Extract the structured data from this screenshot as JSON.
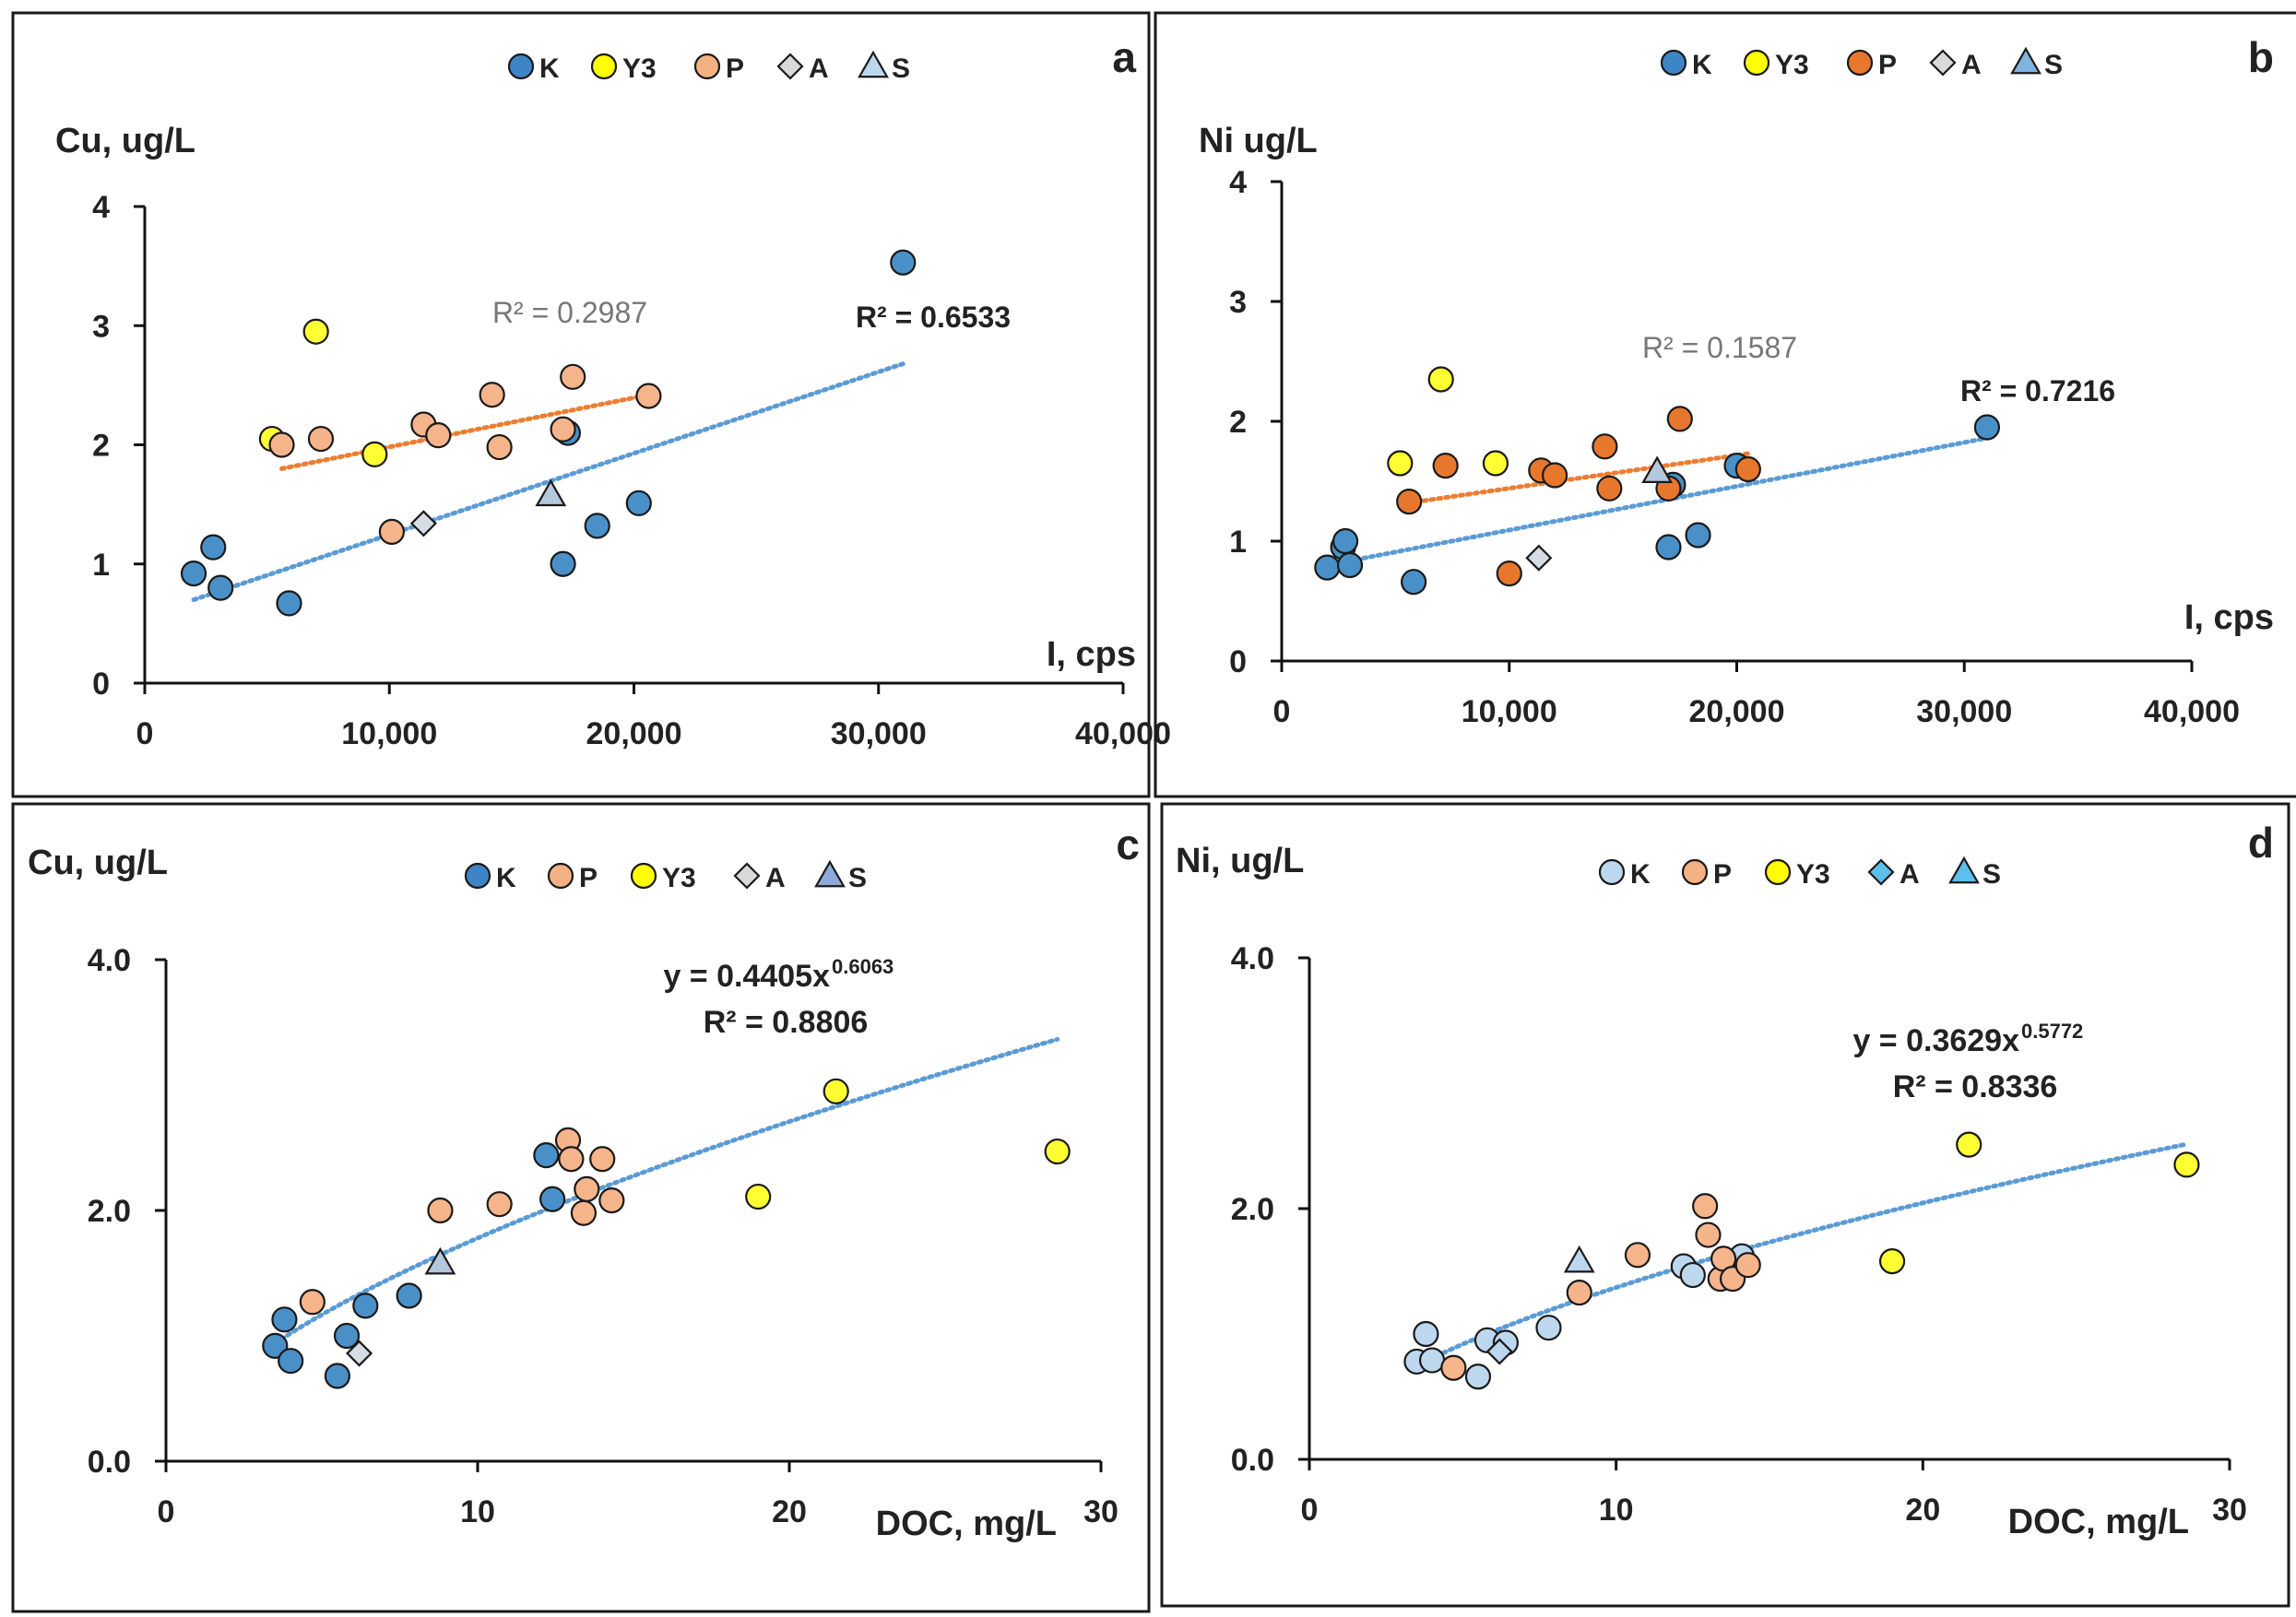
{
  "figure": {
    "description_markers": "K circle, Y3 circle, P circle, A diamond, S triangle"
  },
  "chart_data": [
    {
      "type": "scatter",
      "panel": "a",
      "ylabel": "Cu, ug/L",
      "xlabel": "I, cps",
      "xlim": [
        0,
        40000
      ],
      "ylim": [
        0,
        4
      ],
      "xticks": [
        0,
        10000,
        20000,
        30000,
        40000
      ],
      "xtick_labels": [
        "0",
        "10,000",
        "20,000",
        "30,000",
        "40,000"
      ],
      "yticks": [
        0,
        1,
        2,
        3,
        4
      ],
      "ytick_labels": [
        "0",
        "1",
        "2",
        "3",
        "4"
      ],
      "legend": [
        {
          "name": "K",
          "marker": "circle",
          "color": "#3d85c6"
        },
        {
          "name": "Y3",
          "marker": "circle",
          "color": "#ffff00"
        },
        {
          "name": "P",
          "marker": "circle",
          "color": "#f4b183"
        },
        {
          "name": "A",
          "marker": "diamond",
          "color": "#d9d9d9"
        },
        {
          "name": "S",
          "marker": "triangle",
          "color": "#bdd7ee"
        }
      ],
      "series": [
        {
          "name": "K",
          "marker": "circle",
          "color": "#4a90c8",
          "x": [
            2000,
            2800,
            3100,
            5900,
            17100,
            17300,
            18500,
            20200,
            31000
          ],
          "y": [
            0.92,
            1.14,
            0.8,
            0.67,
            1.0,
            2.1,
            1.32,
            1.51,
            3.53
          ]
        },
        {
          "name": "Y3",
          "marker": "circle",
          "color": "#ffff33",
          "x": [
            5200,
            7000,
            9400
          ],
          "y": [
            2.05,
            2.95,
            1.92
          ]
        },
        {
          "name": "P",
          "marker": "circle",
          "color": "#f5b48a",
          "x": [
            5600,
            7200,
            10100,
            11400,
            12000,
            14200,
            14500,
            17100,
            17500,
            20600
          ],
          "y": [
            2.0,
            2.05,
            1.27,
            2.17,
            2.08,
            2.42,
            1.98,
            2.13,
            2.57,
            2.41
          ]
        },
        {
          "name": "A",
          "marker": "diamond",
          "color": "#d5dce4",
          "x": [
            11400
          ],
          "y": [
            1.34
          ]
        },
        {
          "name": "S",
          "marker": "triangle",
          "color": "#b4c7dc",
          "x": [
            16600
          ],
          "y": [
            1.58
          ]
        }
      ],
      "trendlines": [
        {
          "color": "#5b9bd5",
          "x": [
            2000,
            31000
          ],
          "y": [
            0.7,
            2.68
          ],
          "label": "R² = 0.6533",
          "label_color": "#222222"
        },
        {
          "color": "#ed7d31",
          "x": [
            5600,
            20600
          ],
          "y": [
            1.8,
            2.42
          ],
          "label": "R² = 0.2987",
          "label_color": "#777777"
        }
      ]
    },
    {
      "type": "scatter",
      "panel": "b",
      "ylabel": "Ni ug/L",
      "xlabel": "I, cps",
      "xlim": [
        0,
        40000
      ],
      "ylim": [
        0,
        4
      ],
      "xticks": [
        0,
        10000,
        20000,
        30000,
        40000
      ],
      "xtick_labels": [
        "0",
        "10,000",
        "20,000",
        "30,000",
        "40,000"
      ],
      "yticks": [
        0,
        1,
        2,
        3,
        4
      ],
      "ytick_labels": [
        "0",
        "1",
        "2",
        "3",
        "4"
      ],
      "legend": [
        {
          "name": "K",
          "marker": "circle",
          "color": "#3d85c6"
        },
        {
          "name": "Y3",
          "marker": "circle",
          "color": "#ffff00"
        },
        {
          "name": "P",
          "marker": "circle",
          "color": "#e8772e"
        },
        {
          "name": "A",
          "marker": "diamond",
          "color": "#d9d9d9"
        },
        {
          "name": "S",
          "marker": "triangle",
          "color": "#7fb3e0"
        }
      ],
      "series": [
        {
          "name": "K",
          "marker": "circle",
          "color": "#4a90c8",
          "x": [
            2000,
            2700,
            2800,
            3000,
            5800,
            17000,
            17200,
            18300,
            20000,
            31000
          ],
          "y": [
            0.78,
            0.95,
            1.0,
            0.8,
            0.66,
            0.95,
            1.47,
            1.05,
            1.63,
            1.95
          ]
        },
        {
          "name": "Y3",
          "marker": "circle",
          "color": "#ffff33",
          "x": [
            5200,
            7000,
            9400
          ],
          "y": [
            1.65,
            2.35,
            1.65
          ]
        },
        {
          "name": "P",
          "marker": "circle",
          "color": "#e8772e",
          "x": [
            5600,
            7200,
            10000,
            11400,
            12000,
            14200,
            14400,
            17000,
            17500,
            20500
          ],
          "y": [
            1.33,
            1.63,
            0.73,
            1.59,
            1.55,
            1.79,
            1.44,
            1.44,
            2.02,
            1.6
          ]
        },
        {
          "name": "A",
          "marker": "diamond",
          "color": "#d5dce4",
          "x": [
            11300
          ],
          "y": [
            0.86
          ]
        },
        {
          "name": "S",
          "marker": "triangle",
          "color": "#b4c7dc",
          "x": [
            16500
          ],
          "y": [
            1.58
          ]
        }
      ],
      "trendlines": [
        {
          "color": "#5b9bd5",
          "x": [
            2000,
            31000
          ],
          "y": [
            0.8,
            1.86
          ],
          "label": "R² = 0.7216",
          "label_color": "#222222"
        },
        {
          "color": "#ed7d31",
          "x": [
            5600,
            20500
          ],
          "y": [
            1.32,
            1.73
          ],
          "label": "R² = 0.1587",
          "label_color": "#777777"
        }
      ]
    },
    {
      "type": "scatter",
      "panel": "c",
      "ylabel": "Cu, ug/L",
      "xlabel": "DOC, mg/L",
      "xlim": [
        0,
        30
      ],
      "ylim": [
        0,
        4
      ],
      "xticks": [
        0,
        10,
        20,
        30
      ],
      "xtick_labels": [
        "0",
        "10",
        "20",
        "30"
      ],
      "yticks": [
        0,
        2,
        4
      ],
      "ytick_labels": [
        "0.0",
        "2.0",
        "4.0"
      ],
      "legend": [
        {
          "name": "K",
          "marker": "circle",
          "color": "#3d85c6"
        },
        {
          "name": "P",
          "marker": "circle",
          "color": "#f4b183"
        },
        {
          "name": "Y3",
          "marker": "circle",
          "color": "#ffff00"
        },
        {
          "name": "A",
          "marker": "diamond",
          "color": "#d9d9d9"
        },
        {
          "name": "S",
          "marker": "triangle",
          "color": "#8eaadb"
        }
      ],
      "series": [
        {
          "name": "K",
          "marker": "circle",
          "color": "#4a90c8",
          "x": [
            3.5,
            3.8,
            4.0,
            5.5,
            5.8,
            6.4,
            7.8,
            12.2,
            12.4
          ],
          "y": [
            0.92,
            1.13,
            0.8,
            0.68,
            1.0,
            1.24,
            1.32,
            2.44,
            2.09
          ]
        },
        {
          "name": "P",
          "marker": "circle",
          "color": "#f5b48a",
          "x": [
            4.7,
            8.8,
            10.7,
            12.9,
            13.0,
            13.4,
            13.5,
            14.0,
            14.3
          ],
          "y": [
            1.27,
            2.0,
            2.05,
            2.56,
            2.41,
            1.98,
            2.17,
            2.41,
            2.08
          ]
        },
        {
          "name": "Y3",
          "marker": "circle",
          "color": "#ffff33",
          "x": [
            19.0,
            21.5,
            28.6
          ],
          "y": [
            2.11,
            2.95,
            2.47
          ]
        },
        {
          "name": "A",
          "marker": "diamond",
          "color": "#d5dce4",
          "x": [
            6.2
          ],
          "y": [
            0.86
          ]
        },
        {
          "name": "S",
          "marker": "triangle",
          "color": "#b4c7dc",
          "x": [
            8.8
          ],
          "y": [
            1.58
          ]
        }
      ],
      "trendlines": [
        {
          "color": "#5b9bd5",
          "type": "power",
          "a": 0.4405,
          "b": 0.6063,
          "x_from": 3.5,
          "x_to": 28.6,
          "label": "y = 0.4405x",
          "label_exp": "0.6063",
          "label2": "R² = 0.8806"
        }
      ]
    },
    {
      "type": "scatter",
      "panel": "d",
      "ylabel": "Ni, ug/L",
      "xlabel": "DOC, mg/L",
      "xlim": [
        0,
        30
      ],
      "ylim": [
        0,
        4
      ],
      "xticks": [
        0,
        10,
        20,
        30
      ],
      "xtick_labels": [
        "0",
        "10",
        "20",
        "30"
      ],
      "yticks": [
        0,
        2,
        4
      ],
      "ytick_labels": [
        "0.0",
        "2.0",
        "4.0"
      ],
      "legend": [
        {
          "name": "K",
          "marker": "circle",
          "color": "#bdd7ee"
        },
        {
          "name": "P",
          "marker": "circle",
          "color": "#f4b183"
        },
        {
          "name": "Y3",
          "marker": "circle",
          "color": "#ffff00"
        },
        {
          "name": "A",
          "marker": "diamond",
          "color": "#5bc0eb"
        },
        {
          "name": "S",
          "marker": "triangle",
          "color": "#5bc0eb"
        }
      ],
      "series": [
        {
          "name": "K",
          "marker": "circle",
          "color": "#bdd7ee",
          "x": [
            3.5,
            3.8,
            4.0,
            5.5,
            5.8,
            6.4,
            7.8,
            12.2,
            12.5,
            13.6,
            14.1
          ],
          "y": [
            0.78,
            1.0,
            0.79,
            0.66,
            0.95,
            0.93,
            1.05,
            1.54,
            1.47,
            1.47,
            1.62
          ]
        },
        {
          "name": "P",
          "marker": "circle",
          "color": "#f5b48a",
          "x": [
            4.7,
            8.8,
            10.7,
            12.9,
            13.0,
            13.4,
            13.5,
            13.8,
            14.3
          ],
          "y": [
            0.73,
            1.33,
            1.63,
            2.02,
            1.79,
            1.44,
            1.6,
            1.44,
            1.55
          ]
        },
        {
          "name": "Y3",
          "marker": "circle",
          "color": "#ffff33",
          "x": [
            19.0,
            21.5,
            28.6
          ],
          "y": [
            1.58,
            2.51,
            2.35
          ]
        },
        {
          "name": "A",
          "marker": "diamond",
          "color": "#bdd7ee",
          "x": [
            6.2
          ],
          "y": [
            0.86
          ]
        },
        {
          "name": "S",
          "marker": "triangle",
          "color": "#bdd7ee",
          "x": [
            8.8
          ],
          "y": [
            1.58
          ]
        }
      ],
      "trendlines": [
        {
          "color": "#5b9bd5",
          "type": "power",
          "a": 0.3629,
          "b": 0.5772,
          "x_from": 3.5,
          "x_to": 28.6,
          "label": "y = 0.3629x",
          "label_exp": "0.5772",
          "label2": "R² = 0.8336"
        }
      ]
    }
  ]
}
